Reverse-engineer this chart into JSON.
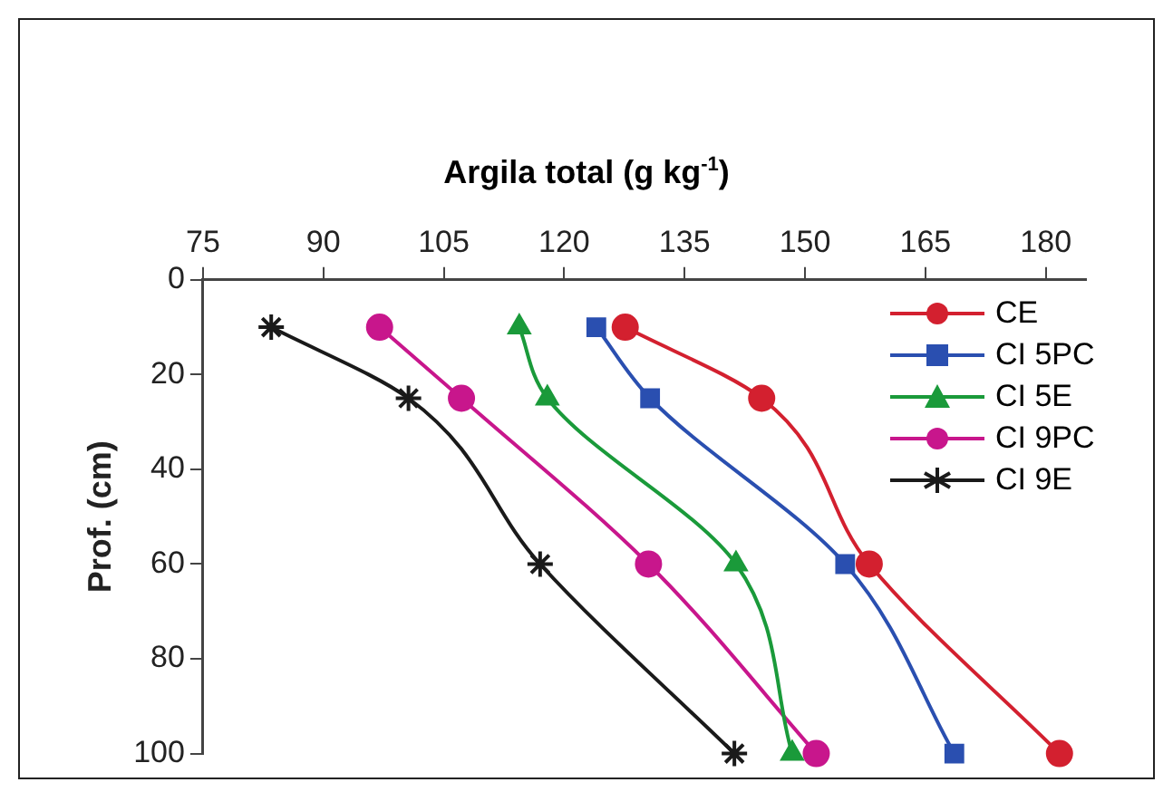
{
  "chart_data": {
    "type": "line",
    "xlabel": "Argila total (g kg$^{-1}$)",
    "ylabel": "Prof. (cm)",
    "xlim": [
      75,
      185
    ],
    "xticks": [
      75,
      90,
      105,
      120,
      135,
      150,
      165,
      180
    ],
    "ylim": [
      100,
      0
    ],
    "yticks": [
      0,
      20,
      40,
      60,
      80,
      100
    ],
    "grid": false,
    "legend": "top right",
    "series": [
      {
        "name": "CE",
        "color": "#d3202f",
        "marker": "circle",
        "x": [
          127.6,
          144.6,
          158,
          181.7
        ],
        "values": [
          10,
          25,
          60,
          100
        ]
      },
      {
        "name": "CI 5PC",
        "color": "#2a4fb0",
        "marker": "square",
        "x": [
          124,
          130.7,
          155,
          168.6
        ],
        "values": [
          10,
          25,
          60,
          100
        ]
      },
      {
        "name": "CI 5E",
        "color": "#1a9a3a",
        "marker": "triangle",
        "x": [
          114.4,
          117.9,
          141.4,
          148.4
        ],
        "values": [
          10,
          25,
          60,
          100
        ]
      },
      {
        "name": "CI 9PC",
        "color": "#c8168c",
        "marker": "circle",
        "x": [
          97,
          107.2,
          130.5,
          151.4
        ],
        "values": [
          10,
          25,
          60,
          100
        ]
      },
      {
        "name": "CI 9E",
        "color": "#1a1a1a",
        "marker": "cross",
        "x": [
          83.5,
          100.6,
          117,
          141.2
        ],
        "values": [
          10,
          25,
          60,
          100
        ]
      }
    ]
  }
}
